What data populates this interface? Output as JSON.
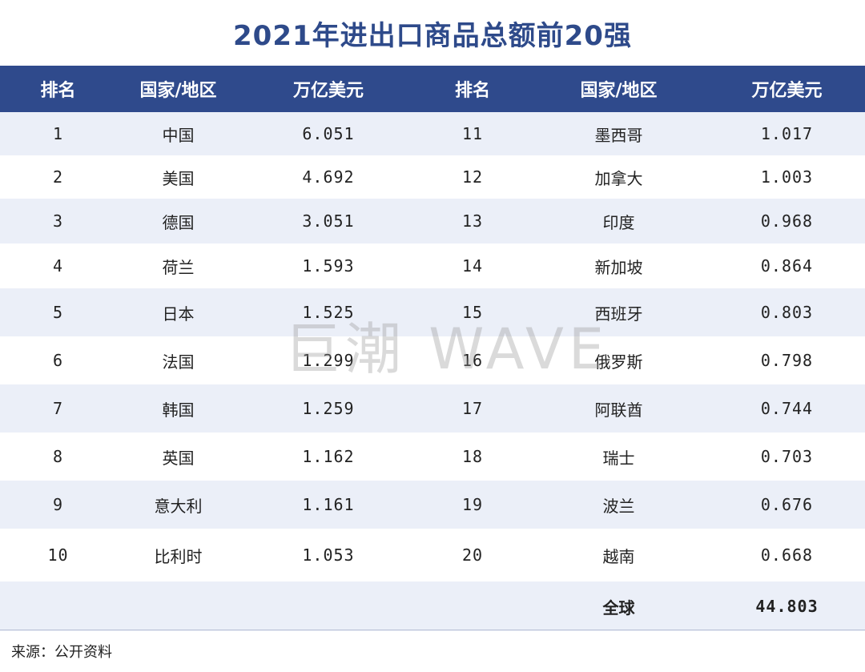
{
  "title": "2021年进出口商品总额前20强",
  "headers": [
    "排名",
    "国家/地区",
    "万亿美元",
    "排名",
    "国家/地区",
    "万亿美元"
  ],
  "rows": [
    {
      "rank_l": "1",
      "country_l": "中国",
      "value_l": "6.051",
      "rank_r": "11",
      "country_r": "墨西哥",
      "value_r": "1.017"
    },
    {
      "rank_l": "2",
      "country_l": "美国",
      "value_l": "4.692",
      "rank_r": "12",
      "country_r": "加拿大",
      "value_r": "1.003"
    },
    {
      "rank_l": "3",
      "country_l": "德国",
      "value_l": "3.051",
      "rank_r": "13",
      "country_r": "印度",
      "value_r": "0.968"
    },
    {
      "rank_l": "4",
      "country_l": "荷兰",
      "value_l": "1.593",
      "rank_r": "14",
      "country_r": "新加坡",
      "value_r": "0.864"
    },
    {
      "rank_l": "5",
      "country_l": "日本",
      "value_l": "1.525",
      "rank_r": "15",
      "country_r": "西班牙",
      "value_r": "0.803"
    },
    {
      "rank_l": "6",
      "country_l": "法国",
      "value_l": "1.299",
      "rank_r": "16",
      "country_r": "俄罗斯",
      "value_r": "0.798"
    },
    {
      "rank_l": "7",
      "country_l": "韩国",
      "value_l": "1.259",
      "rank_r": "17",
      "country_r": "阿联酋",
      "value_r": "0.744"
    },
    {
      "rank_l": "8",
      "country_l": "英国",
      "value_l": "1.162",
      "rank_r": "18",
      "country_r": "瑞士",
      "value_r": "0.703"
    },
    {
      "rank_l": "9",
      "country_l": "意大利",
      "value_l": "1.161",
      "rank_r": "19",
      "country_r": "波兰",
      "value_r": "0.676"
    },
    {
      "rank_l": "10",
      "country_l": "比利时",
      "value_l": "1.053",
      "rank_r": "20",
      "country_r": "越南",
      "value_r": "0.668"
    }
  ],
  "total": {
    "label": "全球",
    "value": "44.803"
  },
  "source": "来源：公开资料",
  "watermark": "巨潮 WAVE",
  "colors": {
    "header_bg": "#2f4a8c",
    "title": "#2e4a8a",
    "shade": "#ebeff8"
  }
}
